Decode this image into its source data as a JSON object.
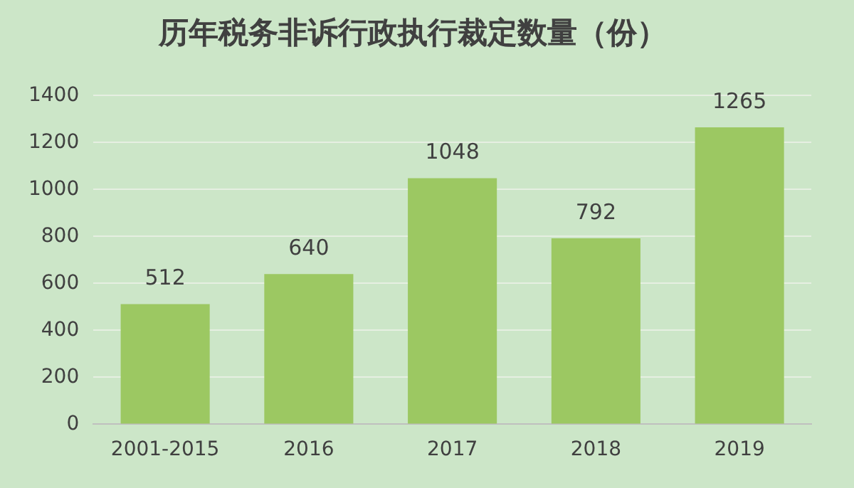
{
  "chart_data": {
    "type": "bar",
    "title": "历年税务非诉行政执行裁定数量（份）",
    "categories": [
      "2001-2015",
      "2016",
      "2017",
      "2018",
      "2019"
    ],
    "values": [
      512,
      640,
      1048,
      792,
      1265
    ],
    "color": "#9cc862",
    "ylim": [
      0,
      1400
    ],
    "yticks": [
      0,
      200,
      400,
      600,
      800,
      1000,
      1200,
      1400
    ],
    "grid": "y",
    "data_labels": true,
    "legend": false
  }
}
